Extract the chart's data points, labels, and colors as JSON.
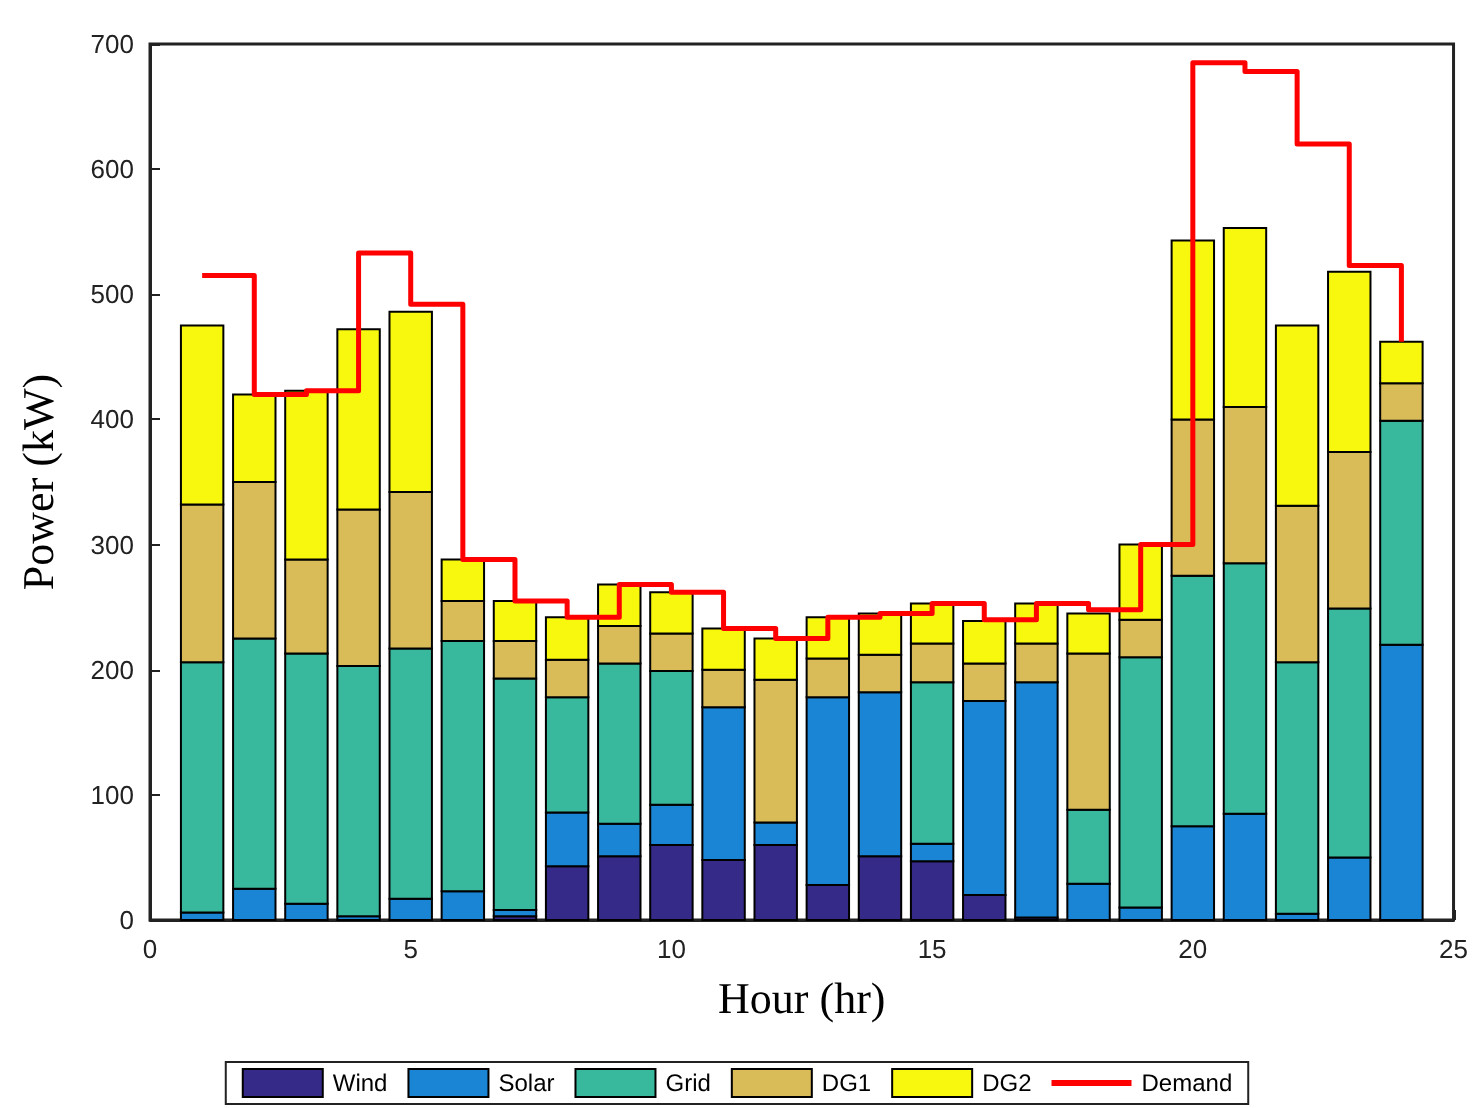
{
  "chart_data": {
    "type": "bar",
    "stacked": true,
    "xlabel": "Hour (hr)",
    "ylabel": "Power (kW)",
    "x": [
      1,
      2,
      3,
      4,
      5,
      6,
      7,
      8,
      9,
      10,
      11,
      12,
      13,
      14,
      15,
      16,
      17,
      18,
      19,
      20,
      21,
      22,
      23,
      24
    ],
    "xlim": [
      0,
      25
    ],
    "xticks": [
      0,
      5,
      10,
      15,
      20,
      25
    ],
    "ylim": [
      0,
      700
    ],
    "yticks": [
      0,
      100,
      200,
      300,
      400,
      500,
      600,
      700
    ],
    "grid": false,
    "legend": "bottom",
    "series": [
      {
        "name": "Wind",
        "color": "#352a87",
        "values": [
          0,
          0,
          0,
          0,
          0,
          0,
          3,
          43,
          51,
          60,
          48,
          60,
          28,
          51,
          47,
          20,
          2,
          0,
          0,
          0,
          0,
          0,
          0,
          0
        ]
      },
      {
        "name": "Solar",
        "color": "#1a85d4",
        "values": [
          6,
          25,
          13,
          3,
          17,
          23,
          5,
          43,
          26,
          32,
          122,
          18,
          150,
          131,
          14,
          155,
          188,
          29,
          10,
          75,
          85,
          5,
          50,
          220
        ]
      },
      {
        "name": "Grid",
        "color": "#38b99e",
        "values": [
          200,
          200,
          200,
          200,
          200,
          200,
          185,
          92,
          128,
          107,
          0,
          0,
          0,
          0,
          129,
          0,
          0,
          59,
          200,
          200,
          200,
          201,
          199,
          179
        ]
      },
      {
        "name": "DG1",
        "color": "#d9bb57",
        "values": [
          126,
          125,
          75,
          125,
          125,
          32,
          30,
          30,
          30,
          30,
          30,
          114,
          31,
          30,
          31,
          30,
          31,
          125,
          30,
          125,
          125,
          125,
          125,
          30
        ]
      },
      {
        "name": "DG2",
        "color": "#f8f80f",
        "values": [
          143,
          70,
          135,
          144,
          144,
          33,
          32,
          34,
          33,
          33,
          33,
          33,
          33,
          33,
          32,
          34,
          32,
          32,
          60,
          143,
          143,
          144,
          144,
          33
        ]
      },
      {
        "name": "Demand",
        "type": "step",
        "color": "#ff0000",
        "values": [
          515,
          420,
          423,
          533,
          492,
          288,
          255,
          242,
          268,
          262,
          233,
          225,
          242,
          245,
          253,
          240,
          253,
          248,
          300,
          685,
          678,
          620,
          523,
          462
        ]
      }
    ]
  }
}
